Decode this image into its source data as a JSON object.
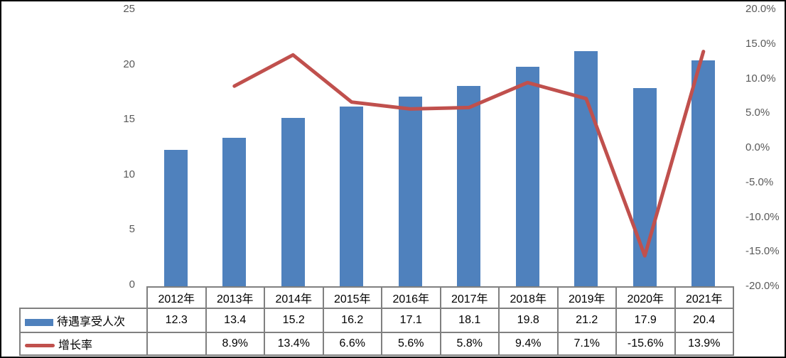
{
  "colors": {
    "bar": "#4F81BD",
    "line": "#C0504D",
    "axis_text": "#595959",
    "table_border": "#808080",
    "table_text": "#000000",
    "frame_border": "#000000",
    "background": "#FFFFFF"
  },
  "chart_data": {
    "type": "bar",
    "subtype": "combo-bar-line",
    "categories": [
      "2012年",
      "2013年",
      "2014年",
      "2015年",
      "2016年",
      "2017年",
      "2018年",
      "2019年",
      "2020年",
      "2021年"
    ],
    "series": [
      {
        "name": "待遇享受人次",
        "type": "bar",
        "axis": "left",
        "color": "#4F81BD",
        "values": [
          12.3,
          13.4,
          15.2,
          16.2,
          17.1,
          18.1,
          19.8,
          21.2,
          17.9,
          20.4
        ],
        "table_values": [
          "12.3",
          "13.4",
          "15.2",
          "16.2",
          "17.1",
          "18.1",
          "19.8",
          "21.2",
          "17.9",
          "20.4"
        ]
      },
      {
        "name": "增长率",
        "type": "line",
        "axis": "right",
        "color": "#C0504D",
        "values": [
          null,
          8.9,
          13.4,
          6.6,
          5.6,
          5.8,
          9.4,
          7.1,
          -15.6,
          13.9
        ],
        "table_values": [
          "",
          "8.9%",
          "13.4%",
          "6.6%",
          "5.6%",
          "5.8%",
          "9.4%",
          "7.1%",
          "-15.6%",
          "13.9%"
        ]
      }
    ],
    "left_axis": {
      "min": 0,
      "max": 25,
      "tick_labels": [
        "25",
        "20",
        "15",
        "10",
        "5",
        "0"
      ]
    },
    "right_axis": {
      "min": -20,
      "max": 20,
      "tick_labels": [
        "20.0%",
        "15.0%",
        "10.0%",
        "5.0%",
        "0.0%",
        "-5.0%",
        "-10.0%",
        "-15.0%",
        "-20.0%"
      ]
    },
    "grid": false,
    "legend_position": "data-table-left",
    "data_table_shown": true
  }
}
